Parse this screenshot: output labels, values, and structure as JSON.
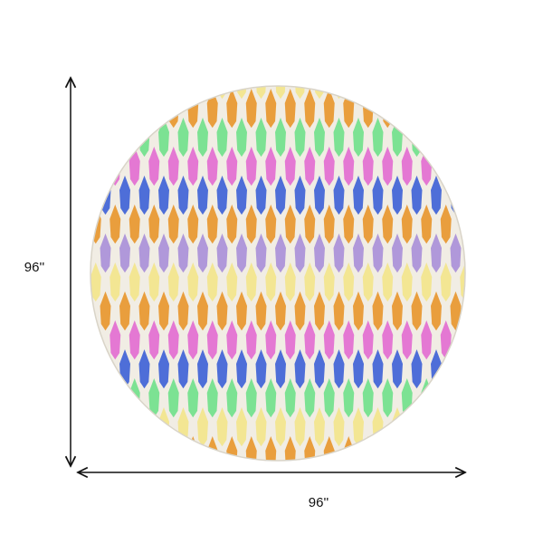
{
  "dimensions": {
    "height": "96''",
    "width": "96''"
  }
}
